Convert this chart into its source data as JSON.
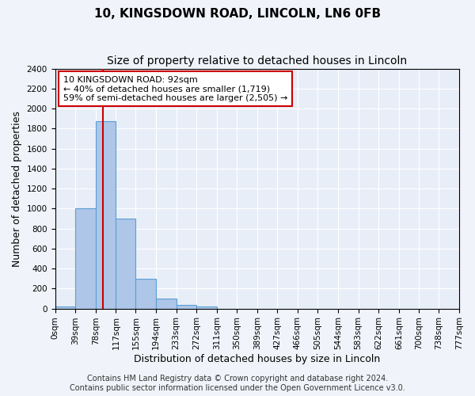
{
  "title": "10, KINGSDOWN ROAD, LINCOLN, LN6 0FB",
  "subtitle": "Size of property relative to detached houses in Lincoln",
  "bar_heights": [
    20,
    1000,
    1870,
    900,
    300,
    100,
    40,
    20,
    0,
    0,
    0,
    0,
    0,
    0,
    0,
    0,
    0,
    0,
    0,
    0
  ],
  "bin_edges": [
    0,
    39,
    78,
    117,
    155,
    194,
    233,
    272,
    311,
    350,
    389,
    427,
    466,
    505,
    544,
    583,
    622,
    661,
    700,
    738,
    777
  ],
  "xtick_labels": [
    "0sqm",
    "39sqm",
    "78sqm",
    "117sqm",
    "155sqm",
    "194sqm",
    "233sqm",
    "272sqm",
    "311sqm",
    "350sqm",
    "389sqm",
    "427sqm",
    "466sqm",
    "505sqm",
    "544sqm",
    "583sqm",
    "622sqm",
    "661sqm",
    "700sqm",
    "738sqm",
    "777sqm"
  ],
  "ylabel": "Number of detached properties",
  "xlabel": "Distribution of detached houses by size in Lincoln",
  "ylim": [
    0,
    2400
  ],
  "yticks": [
    0,
    200,
    400,
    600,
    800,
    1000,
    1200,
    1400,
    1600,
    1800,
    2000,
    2200,
    2400
  ],
  "bar_color": "#aec6e8",
  "bar_edge_color": "#5a9fd4",
  "vline_x": 92,
  "vline_color": "#cc0000",
  "annotation_title": "10 KINGSDOWN ROAD: 92sqm",
  "annotation_line1": "← 40% of detached houses are smaller (1,719)",
  "annotation_line2": "59% of semi-detached houses are larger (2,505) →",
  "annotation_box_color": "#cc0000",
  "footer_line1": "Contains HM Land Registry data © Crown copyright and database right 2024.",
  "footer_line2": "Contains public sector information licensed under the Open Government Licence v3.0.",
  "background_color": "#f0f4fa",
  "plot_bg_color": "#e8eef8",
  "grid_color": "#ffffff",
  "title_fontsize": 11,
  "subtitle_fontsize": 10,
  "axis_label_fontsize": 9,
  "tick_fontsize": 7.5,
  "footer_fontsize": 7
}
